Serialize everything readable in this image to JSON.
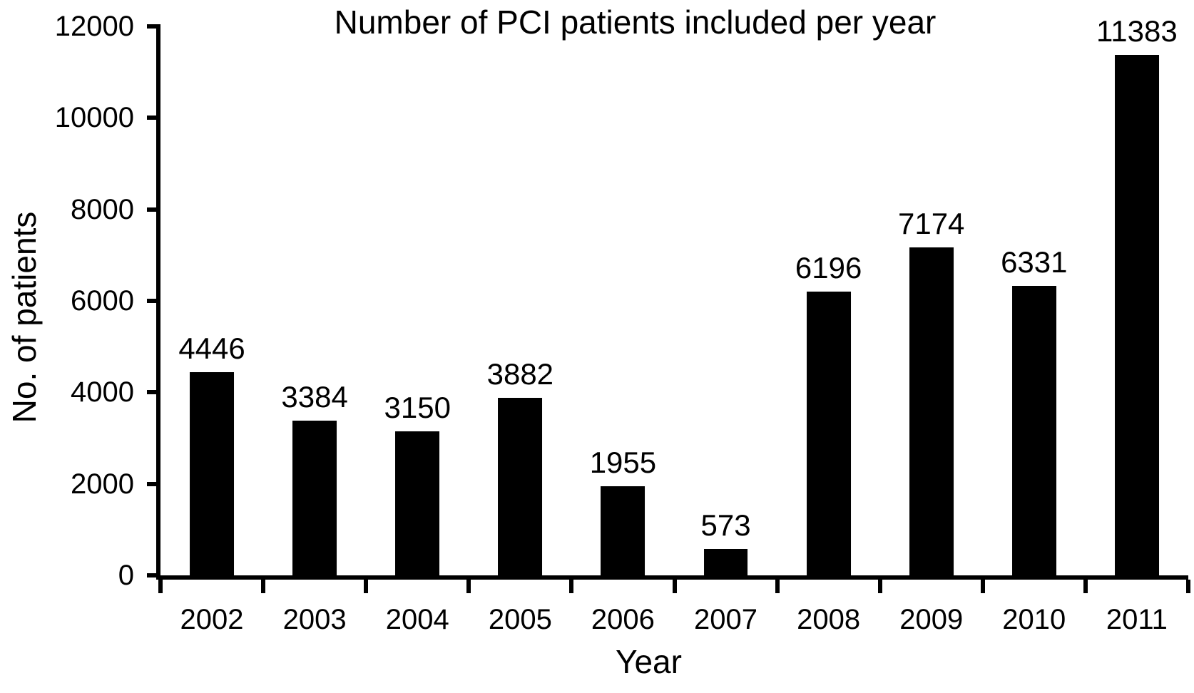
{
  "chart_data": {
    "type": "bar",
    "title": "Number of PCI patients included per year",
    "xlabel": "Year",
    "ylabel": "No. of patients",
    "categories": [
      "2002",
      "2003",
      "2004",
      "2005",
      "2006",
      "2007",
      "2008",
      "2009",
      "2010",
      "2011"
    ],
    "values": [
      4446,
      3384,
      3150,
      3882,
      1955,
      573,
      6196,
      7174,
      6331,
      11383
    ],
    "ylim": [
      0,
      12000
    ],
    "yticks": [
      0,
      2000,
      4000,
      6000,
      8000,
      10000,
      12000
    ],
    "grid": false,
    "legend_position": "none",
    "data_labels": true,
    "bar_color": "#000000",
    "axis_color": "#000000",
    "text_color": "#000000",
    "background_color": "#ffffff"
  }
}
